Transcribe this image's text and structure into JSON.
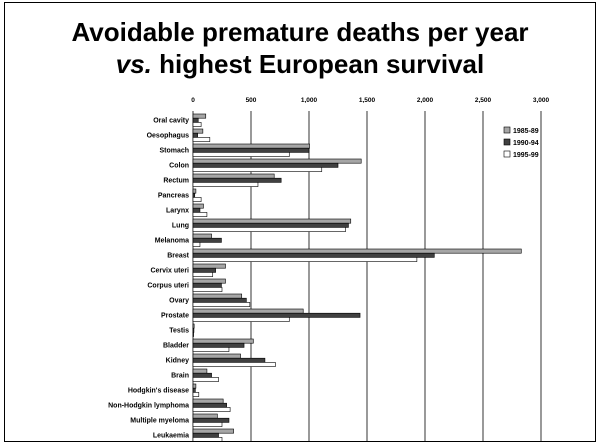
{
  "slide": {
    "title_line1": "Avoidable premature deaths per year",
    "title_line2_italic": "vs.",
    "title_line2_rest": " highest European survival"
  },
  "chart_data": {
    "type": "bar",
    "orientation": "horizontal",
    "title": "Avoidable premature deaths per year vs. highest European survival",
    "xlabel": "",
    "ylabel": "",
    "xlim": [
      0,
      3000
    ],
    "xticks": [
      0,
      500,
      1000,
      1500,
      2000,
      2500,
      3000
    ],
    "xtick_labels": [
      "0",
      "500",
      "1,000",
      "1,500",
      "2,000",
      "2,500",
      "3,000"
    ],
    "grid": true,
    "legend_position": "top-right",
    "categories": [
      "Oral cavity",
      "Oesophagus",
      "Stomach",
      "Colon",
      "Rectum",
      "Pancreas",
      "Larynx",
      "Lung",
      "Melanoma",
      "Breast",
      "Cervix uteri",
      "Corpus uteri",
      "Ovary",
      "Prostate",
      "Testis",
      "Bladder",
      "Kidney",
      "Brain",
      "Hodgkin's disease",
      "Non-Hodgkin lymphoma",
      "Multiple myeloma",
      "Leukaemia"
    ],
    "series": [
      {
        "name": "1985-89",
        "color": "#a6a6a6",
        "values": [
          110,
          85,
          1005,
          1450,
          700,
          25,
          90,
          1360,
          160,
          2830,
          280,
          280,
          420,
          950,
          10,
          520,
          410,
          120,
          25,
          260,
          210,
          350
        ]
      },
      {
        "name": "1990-94",
        "color": "#404040",
        "values": [
          45,
          40,
          1000,
          1250,
          760,
          15,
          60,
          1340,
          245,
          2080,
          195,
          245,
          460,
          1440,
          8,
          440,
          620,
          160,
          20,
          290,
          310,
          220
        ]
      },
      {
        "name": "1995-99",
        "color": "#ffffff",
        "values": [
          70,
          145,
          830,
          1110,
          560,
          70,
          120,
          1315,
          60,
          1930,
          170,
          250,
          490,
          830,
          5,
          310,
          710,
          220,
          50,
          320,
          250,
          250
        ]
      }
    ]
  }
}
